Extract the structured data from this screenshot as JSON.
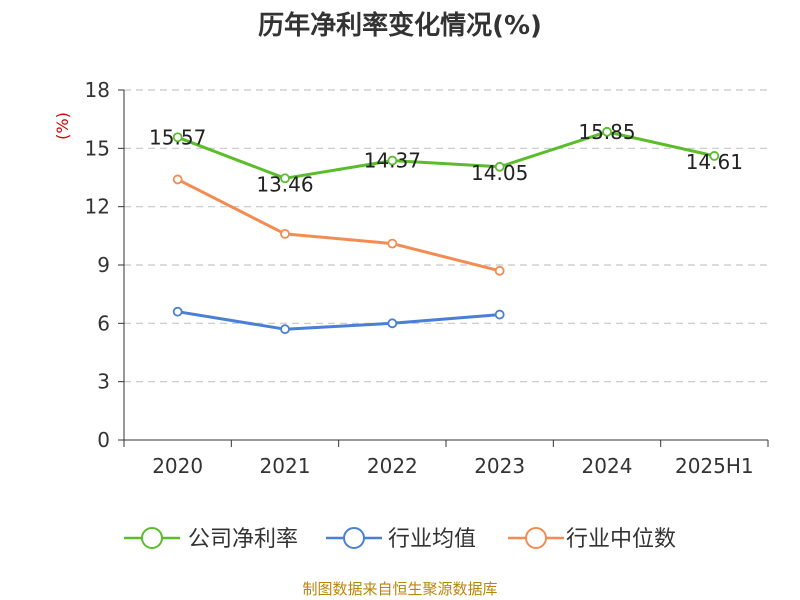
{
  "chart_data": {
    "type": "line",
    "title": "历年净利率变化情况(%)",
    "ylabel": "(%)",
    "xlabel": "",
    "categories": [
      "2020",
      "2021",
      "2022",
      "2023",
      "2024",
      "2025H1"
    ],
    "ylim": [
      0,
      18
    ],
    "yticks": [
      0,
      3,
      6,
      9,
      12,
      15,
      18
    ],
    "grid": true,
    "legend_position": "bottom",
    "series": [
      {
        "name": "公司净利率",
        "color": "#5bbd2b",
        "values": [
          15.57,
          13.46,
          14.37,
          14.05,
          15.85,
          14.61
        ],
        "labels": [
          "15.57",
          "13.46",
          "14.37",
          "14.05",
          "15.85",
          "14.61"
        ]
      },
      {
        "name": "行业均值",
        "color": "#4a7fd6",
        "values": [
          6.6,
          5.7,
          6.0,
          6.45,
          null,
          null
        ]
      },
      {
        "name": "行业中位数",
        "color": "#f28c52",
        "values": [
          13.4,
          10.6,
          10.1,
          8.7,
          null,
          null
        ]
      }
    ]
  },
  "source": "制图数据来自恒生聚源数据库"
}
